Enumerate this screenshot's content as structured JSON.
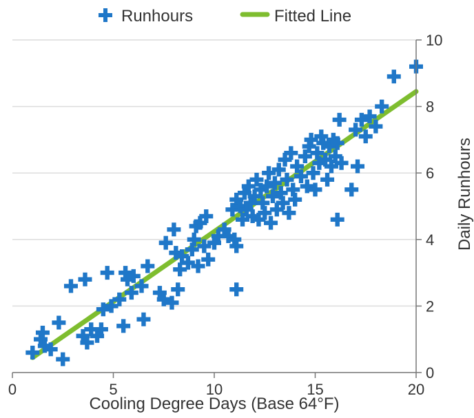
{
  "chart_data": {
    "type": "scatter",
    "xlabel": "Cooling Degree Days (Base 64°F)",
    "ylabel": "Daily Runhours",
    "xlim": [
      0,
      20
    ],
    "ylim": [
      0,
      10
    ],
    "xticks": [
      0,
      5,
      10,
      15,
      20
    ],
    "yticks": [
      0,
      2,
      4,
      6,
      8,
      10
    ],
    "grid": "horizontal",
    "legend_position": "top",
    "legend": [
      {
        "label": "Runhours",
        "marker": "cross",
        "color": "#1f77c8"
      },
      {
        "label": "Fitted Line",
        "marker": "line",
        "color": "#7ebd2f"
      }
    ],
    "series": [
      {
        "name": "Runhours",
        "color": "#1f77c8",
        "points": [
          [
            1.0,
            0.6
          ],
          [
            1.4,
            1.0
          ],
          [
            1.5,
            1.2
          ],
          [
            1.6,
            0.8
          ],
          [
            1.9,
            0.7
          ],
          [
            2.3,
            1.5
          ],
          [
            2.5,
            0.4
          ],
          [
            2.9,
            2.6
          ],
          [
            3.6,
            2.8
          ],
          [
            3.5,
            1.1
          ],
          [
            3.7,
            0.9
          ],
          [
            3.9,
            1.3
          ],
          [
            4.2,
            1.1
          ],
          [
            4.4,
            1.3
          ],
          [
            4.7,
            3.0
          ],
          [
            4.5,
            1.9
          ],
          [
            4.9,
            2.0
          ],
          [
            5.3,
            2.2
          ],
          [
            5.5,
            1.4
          ],
          [
            5.6,
            3.0
          ],
          [
            5.7,
            2.8
          ],
          [
            5.9,
            2.4
          ],
          [
            6.0,
            2.9
          ],
          [
            6.4,
            2.6
          ],
          [
            6.5,
            1.6
          ],
          [
            6.7,
            3.2
          ],
          [
            7.3,
            2.4
          ],
          [
            7.5,
            2.2
          ],
          [
            7.6,
            3.9
          ],
          [
            7.9,
            2.1
          ],
          [
            8.0,
            4.3
          ],
          [
            8.1,
            3.6
          ],
          [
            8.2,
            2.5
          ],
          [
            8.3,
            3.1
          ],
          [
            8.4,
            3.5
          ],
          [
            8.7,
            3.3
          ],
          [
            8.9,
            3.7
          ],
          [
            9.0,
            4.0
          ],
          [
            9.1,
            4.4
          ],
          [
            9.2,
            3.2
          ],
          [
            9.3,
            4.5
          ],
          [
            9.5,
            3.8
          ],
          [
            9.6,
            4.7
          ],
          [
            9.7,
            3.4
          ],
          [
            10.0,
            3.9
          ],
          [
            10.2,
            4.1
          ],
          [
            10.5,
            4.3
          ],
          [
            10.7,
            4.1
          ],
          [
            10.9,
            4.9
          ],
          [
            11.0,
            4.0
          ],
          [
            11.1,
            3.8
          ],
          [
            11.1,
            2.5
          ],
          [
            11.1,
            5.2
          ],
          [
            11.3,
            5.0
          ],
          [
            11.4,
            4.6
          ],
          [
            11.5,
            5.4
          ],
          [
            11.6,
            4.9
          ],
          [
            11.7,
            5.6
          ],
          [
            11.8,
            5.1
          ],
          [
            11.9,
            4.7
          ],
          [
            12.0,
            5.3
          ],
          [
            12.1,
            5.8
          ],
          [
            12.2,
            4.6
          ],
          [
            12.3,
            5.5
          ],
          [
            12.4,
            5.1
          ],
          [
            12.5,
            4.8
          ],
          [
            12.6,
            5.6
          ],
          [
            12.7,
            6.0
          ],
          [
            12.8,
            4.5
          ],
          [
            12.9,
            5.3
          ],
          [
            13.0,
            5.7
          ],
          [
            13.1,
            4.9
          ],
          [
            13.2,
            6.1
          ],
          [
            13.3,
            5.4
          ],
          [
            13.4,
            5.1
          ],
          [
            13.5,
            6.4
          ],
          [
            13.6,
            5.8
          ],
          [
            13.7,
            4.8
          ],
          [
            13.8,
            6.6
          ],
          [
            13.9,
            5.5
          ],
          [
            14.0,
            5.2
          ],
          [
            14.1,
            6.2
          ],
          [
            14.3,
            5.9
          ],
          [
            14.5,
            6.5
          ],
          [
            14.6,
            5.6
          ],
          [
            14.7,
            6.8
          ],
          [
            14.8,
            7.0
          ],
          [
            14.9,
            6.0
          ],
          [
            15.0,
            5.5
          ],
          [
            15.1,
            6.6
          ],
          [
            15.2,
            6.3
          ],
          [
            15.3,
            7.1
          ],
          [
            15.4,
            6.9
          ],
          [
            15.5,
            6.4
          ],
          [
            15.6,
            5.8
          ],
          [
            15.7,
            6.8
          ],
          [
            15.8,
            6.2
          ],
          [
            15.9,
            7.0
          ],
          [
            16.0,
            6.5
          ],
          [
            16.1,
            6.9
          ],
          [
            16.2,
            7.6
          ],
          [
            16.3,
            6.3
          ],
          [
            16.1,
            4.6
          ],
          [
            16.8,
            5.5
          ],
          [
            17.0,
            7.3
          ],
          [
            17.1,
            6.2
          ],
          [
            17.3,
            7.6
          ],
          [
            17.5,
            7.1
          ],
          [
            17.7,
            7.7
          ],
          [
            18.0,
            7.4
          ],
          [
            18.3,
            8.0
          ],
          [
            18.9,
            8.9
          ],
          [
            20.0,
            9.2
          ]
        ]
      },
      {
        "name": "Fitted Line",
        "color": "#7ebd2f",
        "points": [
          [
            1.0,
            0.45
          ],
          [
            20.0,
            8.45
          ]
        ]
      }
    ]
  }
}
